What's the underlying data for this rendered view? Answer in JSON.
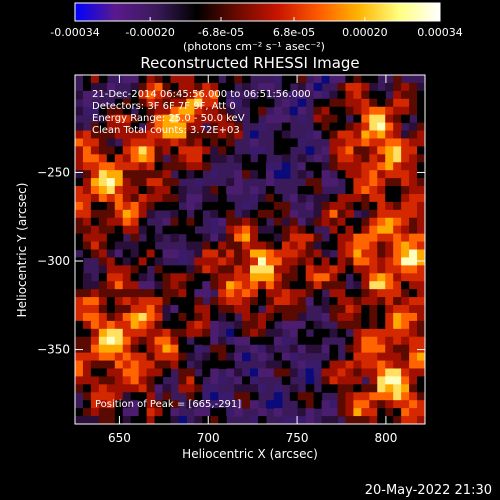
{
  "colorbar": {
    "tick_labels": [
      "-0.00034",
      "-0.00020",
      "-6.8e-05",
      "6.8e-05",
      "0.00020",
      "0.00034"
    ],
    "tick_values": [
      -0.00034,
      -0.0002,
      -6.8e-05,
      6.8e-05,
      0.0002,
      0.00034
    ],
    "range": [
      -0.00034,
      0.00034
    ],
    "unit_label": "(photons cm⁻² s⁻¹ asec⁻²)",
    "colors": [
      "#0000ff",
      "#5a1a8c",
      "#3a1a5a",
      "#000000",
      "#6b0a00",
      "#c81400",
      "#ff5a00",
      "#ffb400",
      "#ffff80",
      "#ffffff"
    ]
  },
  "chart_data": {
    "type": "heatmap",
    "title": "Reconstructed RHESSI Image",
    "xlabel": "Heliocentric X (arcsec)",
    "ylabel": "Heliocentric Y (arcsec)",
    "xlim": [
      625,
      822
    ],
    "ylim": [
      -392,
      -195
    ],
    "x_ticks": [
      650,
      700,
      750,
      800
    ],
    "x_tick_labels": [
      "650",
      "700",
      "750",
      "800"
    ],
    "y_ticks": [
      -250,
      -300,
      -350
    ],
    "y_tick_labels": [
      "−250",
      "−300",
      "−350"
    ],
    "peak": [
      665,
      -291
    ]
  },
  "annotations": {
    "time_range": "21-Dec-2014 06:45:56.000 to 06:51:56.000",
    "detectors": "Detectors: 3F 6F 7F 9F, Att 0",
    "energy": "Energy Range: 25.0 - 50.0 keV",
    "clean": "Clean     Total counts: 3.72E+03",
    "peak": "Position of Peak = [665,-291]"
  },
  "footer": {
    "date": "20-May-2022 21:30"
  }
}
